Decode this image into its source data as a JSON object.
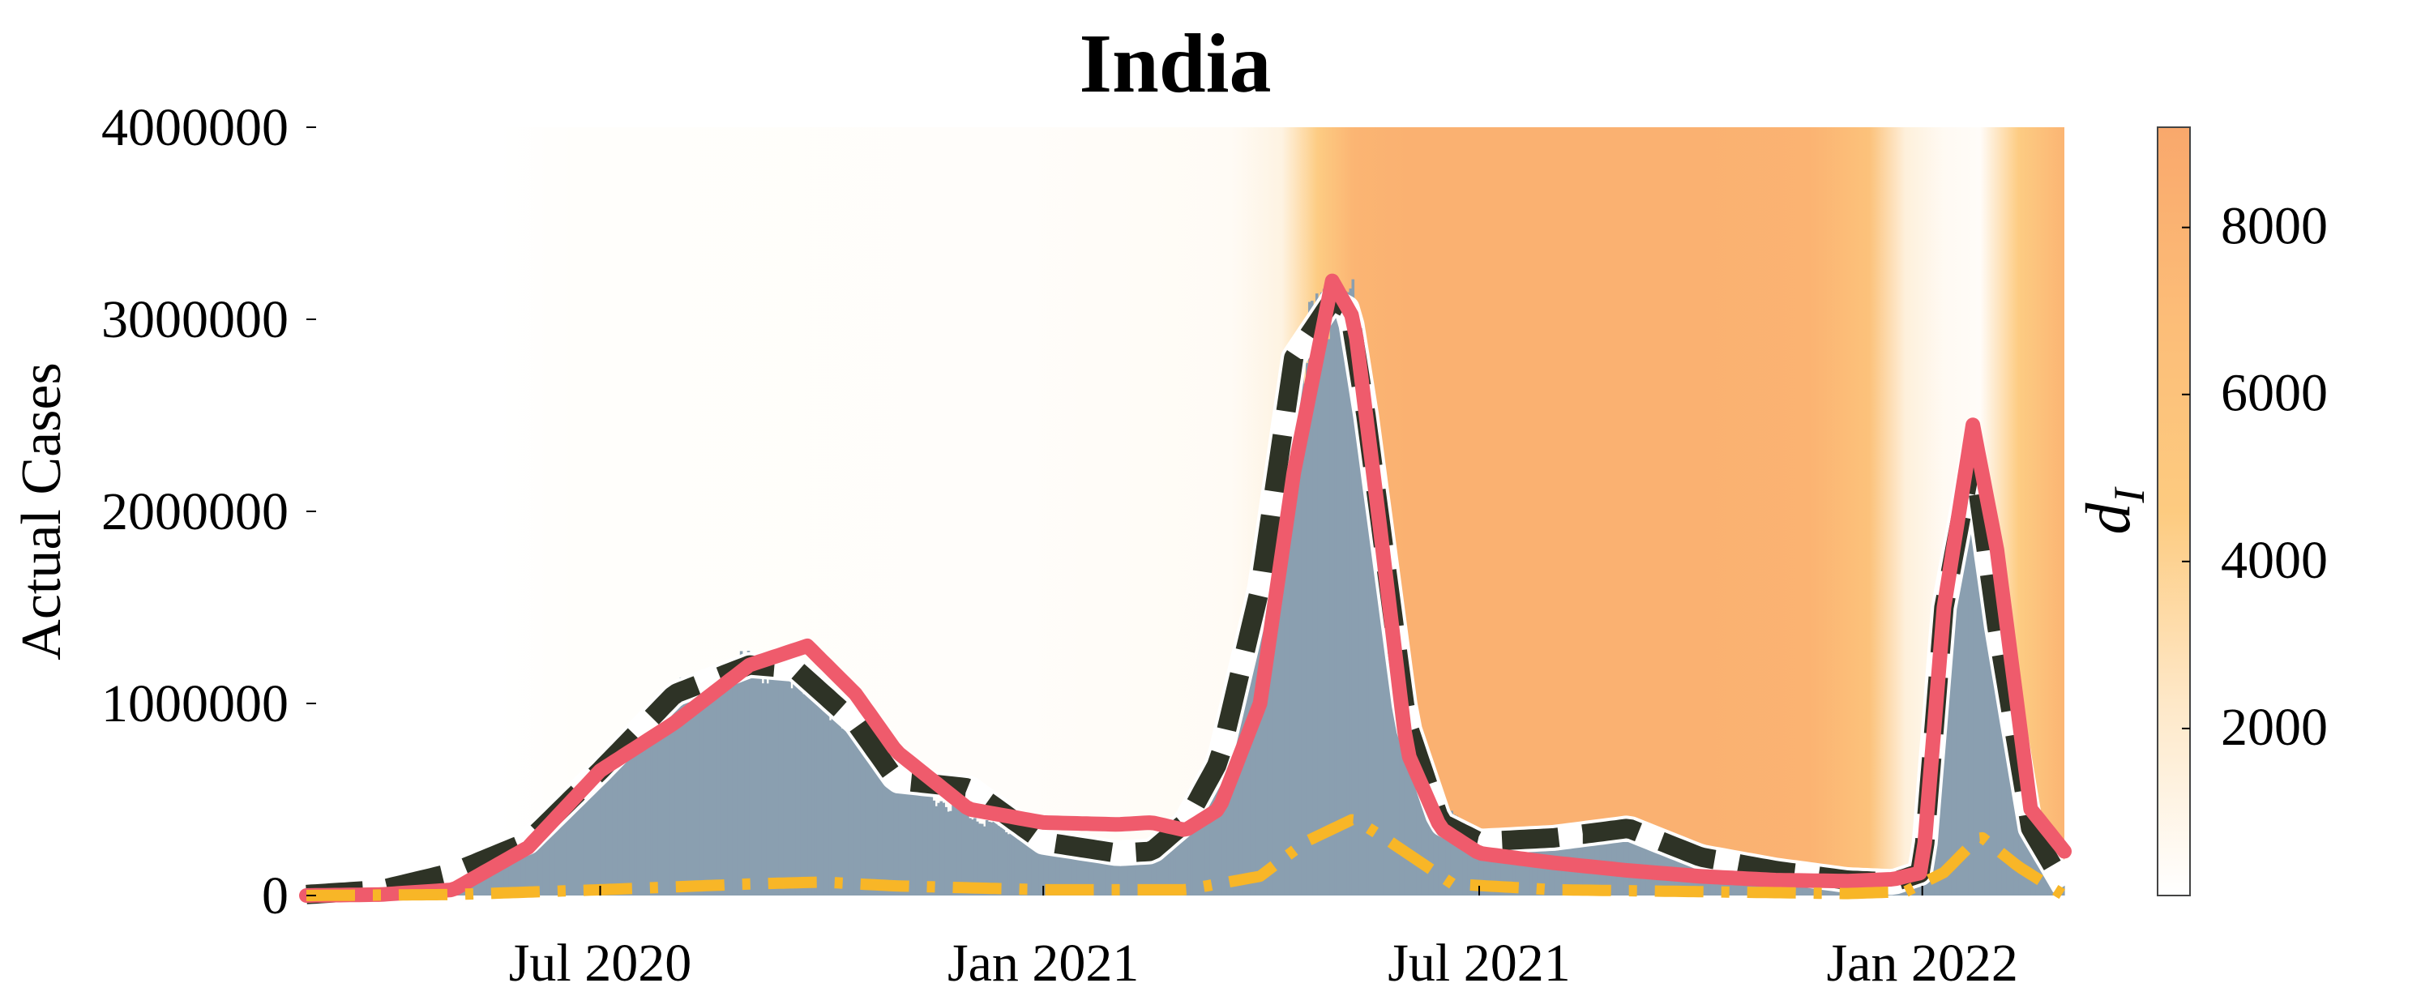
{
  "chart_data": {
    "type": "bar",
    "title": "India",
    "ylabel": "Actual Cases",
    "xlabel": "",
    "ylim": [
      0,
      4000000
    ],
    "yticks": [
      0,
      1000000,
      2000000,
      3000000,
      4000000
    ],
    "ytick_labels": [
      "0",
      "1000000",
      "2000000",
      "3000000",
      "4000000"
    ],
    "xlim": [
      "2020-03-01",
      "2022-03-01"
    ],
    "xticks": [
      "2020-07-01",
      "2021-01-01",
      "2021-07-01",
      "2022-01-01"
    ],
    "xtick_labels": [
      "Jul 2020",
      "Jan 2021",
      "Jul 2021",
      "Jan 2022"
    ],
    "grid": false,
    "colorbar": {
      "label": "d",
      "label_subscript": "I",
      "range": [
        0,
        9200
      ],
      "ticks": [
        2000,
        4000,
        6000,
        8000
      ],
      "tick_labels": [
        "2000",
        "4000",
        "6000",
        "8000"
      ],
      "colors": [
        "#ffffff",
        "#fee8c8",
        "#fdcb80",
        "#fcbd78",
        "#f9a86c"
      ]
    },
    "background_dI": {
      "dates": [
        "2020-03-01",
        "2020-05-20",
        "2020-06-20",
        "2020-12-20",
        "2021-03-20",
        "2021-04-10",
        "2021-04-25",
        "2021-05-10",
        "2021-06-01",
        "2021-10-01",
        "2021-11-15",
        "2021-12-10",
        "2021-12-25",
        "2022-01-10",
        "2022-01-25",
        "2022-02-10",
        "2022-03-01"
      ],
      "values": [
        0,
        0,
        150,
        200,
        400,
        1200,
        4500,
        7800,
        8200,
        8200,
        8000,
        6000,
        1500,
        500,
        300,
        4500,
        7800
      ]
    },
    "series": [
      {
        "name": "",
        "style": "bars",
        "color": "#8a9fb0",
        "x": [
          "2020-03-01",
          "2020-04-01",
          "2020-05-01",
          "2020-06-01",
          "2020-07-01",
          "2020-08-01",
          "2020-09-01",
          "2020-09-20",
          "2020-10-15",
          "2020-11-01",
          "2020-12-01",
          "2021-01-01",
          "2021-02-01",
          "2021-02-15",
          "2021-03-01",
          "2021-03-15",
          "2021-04-01",
          "2021-04-15",
          "2021-05-01",
          "2021-05-08",
          "2021-05-15",
          "2021-06-01",
          "2021-06-15",
          "2021-07-01",
          "2021-08-01",
          "2021-09-01",
          "2021-10-01",
          "2021-11-01",
          "2021-12-01",
          "2021-12-20",
          "2022-01-01",
          "2022-01-10",
          "2022-01-22",
          "2022-02-01",
          "2022-02-15",
          "2022-03-01"
        ],
        "values": [
          5000,
          30000,
          120000,
          280000,
          650000,
          1050000,
          1200000,
          1150000,
          850000,
          600000,
          420000,
          250000,
          200000,
          220000,
          350000,
          650000,
          1500000,
          2700000,
          3200000,
          3100000,
          2600000,
          1000000,
          450000,
          300000,
          250000,
          320000,
          200000,
          120000,
          70000,
          80000,
          180000,
          1200000,
          2500000,
          1500000,
          400000,
          100000
        ]
      },
      {
        "name": "",
        "style": "black-dashed",
        "color": "#2e3326",
        "x": [
          "2020-03-01",
          "2020-04-01",
          "2020-05-01",
          "2020-06-01",
          "2020-07-01",
          "2020-08-01",
          "2020-09-01",
          "2020-09-20",
          "2020-10-15",
          "2020-11-01",
          "2020-12-01",
          "2021-01-01",
          "2021-02-01",
          "2021-02-15",
          "2021-03-01",
          "2021-03-15",
          "2021-04-01",
          "2021-04-15",
          "2021-05-01",
          "2021-05-08",
          "2021-05-15",
          "2021-06-01",
          "2021-06-15",
          "2021-07-01",
          "2021-08-01",
          "2021-09-01",
          "2021-10-01",
          "2021-11-01",
          "2021-12-01",
          "2021-12-20",
          "2022-01-01",
          "2022-01-10",
          "2022-01-22",
          "2022-02-01",
          "2022-02-15",
          "2022-03-01"
        ],
        "values": [
          5000,
          30000,
          120000,
          280000,
          650000,
          1050000,
          1200000,
          1180000,
          900000,
          600000,
          560000,
          280000,
          220000,
          230000,
          380000,
          700000,
          1600000,
          2800000,
          3100000,
          3050000,
          2500000,
          900000,
          380000,
          280000,
          300000,
          350000,
          200000,
          130000,
          80000,
          70000,
          120000,
          1500000,
          2300000,
          1400000,
          350000,
          50000
        ]
      },
      {
        "name": "",
        "style": "red-solid",
        "color": "#ef5b6c",
        "x": [
          "2020-03-01",
          "2020-04-01",
          "2020-05-01",
          "2020-06-01",
          "2020-07-01",
          "2020-08-01",
          "2020-09-01",
          "2020-09-25",
          "2020-10-15",
          "2020-11-01",
          "2020-12-01",
          "2021-01-01",
          "2021-02-01",
          "2021-02-15",
          "2021-03-01",
          "2021-03-15",
          "2021-04-01",
          "2021-04-15",
          "2021-05-01",
          "2021-05-10",
          "2021-05-20",
          "2021-06-01",
          "2021-06-15",
          "2021-07-01",
          "2021-08-01",
          "2021-09-01",
          "2021-10-01",
          "2021-11-01",
          "2021-12-01",
          "2021-12-20",
          "2022-01-01",
          "2022-01-10",
          "2022-01-22",
          "2022-02-01",
          "2022-02-15",
          "2022-03-01"
        ],
        "values": [
          0,
          5000,
          30000,
          250000,
          650000,
          900000,
          1200000,
          1300000,
          1050000,
          750000,
          450000,
          380000,
          370000,
          380000,
          340000,
          450000,
          1000000,
          2200000,
          3200000,
          3000000,
          2000000,
          750000,
          350000,
          220000,
          170000,
          130000,
          100000,
          80000,
          75000,
          85000,
          120000,
          1500000,
          2450000,
          1800000,
          450000,
          230000
        ]
      },
      {
        "name": "",
        "style": "yellow-dashed",
        "color": "#f8b627",
        "x": [
          "2020-03-01",
          "2020-05-01",
          "2020-07-01",
          "2020-09-01",
          "2020-10-01",
          "2020-11-01",
          "2021-01-01",
          "2021-03-01",
          "2021-04-01",
          "2021-04-20",
          "2021-05-10",
          "2021-05-25",
          "2021-06-20",
          "2021-08-01",
          "2021-10-01",
          "2021-12-01",
          "2021-12-25",
          "2022-01-10",
          "2022-01-25",
          "2022-02-10",
          "2022-03-01"
        ],
        "values": [
          0,
          5000,
          30000,
          60000,
          70000,
          50000,
          30000,
          30000,
          100000,
          280000,
          400000,
          280000,
          60000,
          30000,
          20000,
          10000,
          20000,
          120000,
          310000,
          150000,
          0
        ]
      }
    ]
  }
}
